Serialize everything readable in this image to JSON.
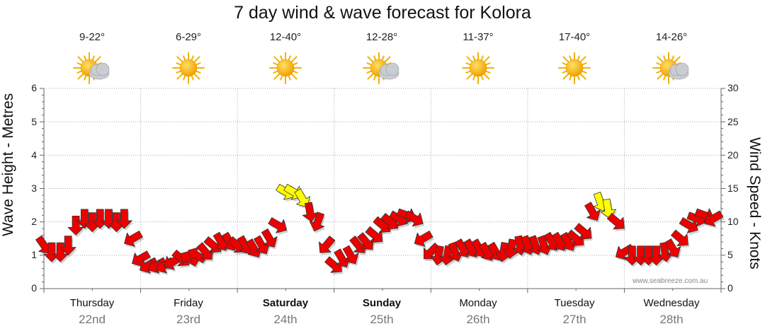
{
  "chart_data": {
    "type": "line",
    "title": "7 day wind & wave forecast for Kolora",
    "ylabel_left": "Wave Height - Metres",
    "ylabel_right": "Wind Speed - Knots",
    "ylim_left": [
      0,
      6
    ],
    "ylim_right": [
      0,
      30
    ],
    "yticks_left": [
      "0",
      "1",
      "2",
      "3",
      "4",
      "5",
      "6"
    ],
    "yticks_right": [
      "0",
      "5",
      "10",
      "15",
      "20",
      "25",
      "30"
    ],
    "days": [
      {
        "day": "Thursday",
        "date": "22nd",
        "temp": "9-22°",
        "icon": "partly-cloudy-icon",
        "bold": false
      },
      {
        "day": "Friday",
        "date": "23rd",
        "temp": "6-29°",
        "icon": "sunny-icon",
        "bold": false
      },
      {
        "day": "Saturday",
        "date": "24th",
        "temp": "12-40°",
        "icon": "sunny-icon",
        "bold": true
      },
      {
        "day": "Sunday",
        "date": "25th",
        "temp": "12-28°",
        "icon": "partly-cloudy-icon",
        "bold": true
      },
      {
        "day": "Monday",
        "date": "26th",
        "temp": "11-37°",
        "icon": "sunny-icon",
        "bold": false
      },
      {
        "day": "Tuesday",
        "date": "27th",
        "temp": "17-40°",
        "icon": "sunny-icon",
        "bold": false
      },
      {
        "day": "Wednesday",
        "date": "28th",
        "temp": "14-26°",
        "icon": "partly-cloudy-icon",
        "bold": false
      }
    ],
    "series": [
      {
        "name": "Wind Speed (knots) with direction arrows",
        "x_days": [
          0.0,
          0.08,
          0.17,
          0.25,
          0.33,
          0.42,
          0.5,
          0.58,
          0.67,
          0.75,
          0.83,
          0.92,
          1.0,
          1.08,
          1.17,
          1.25,
          1.33,
          1.42,
          1.5,
          1.58,
          1.67,
          1.75,
          1.83,
          1.92,
          2.0,
          2.08,
          2.17,
          2.25,
          2.33,
          2.42,
          2.5,
          2.58,
          2.67,
          2.75,
          2.83,
          2.92,
          3.0,
          3.08,
          3.17,
          3.25,
          3.33,
          3.42,
          3.5,
          3.58,
          3.67,
          3.75,
          3.83,
          3.92,
          4.0,
          4.08,
          4.17,
          4.25,
          4.33,
          4.42,
          4.5,
          4.58,
          4.67,
          4.75,
          4.83,
          4.92,
          5.0,
          5.08,
          5.17,
          5.25,
          5.33,
          5.42,
          5.5,
          5.58,
          5.67,
          5.75,
          5.83,
          5.92,
          6.0,
          6.08,
          6.17,
          6.25,
          6.33,
          6.42,
          6.5,
          6.58,
          6.67,
          6.75,
          6.83,
          6.92
        ],
        "values": [
          6.5,
          5.5,
          5.5,
          6.5,
          9.5,
          10.5,
          10,
          10.5,
          10.5,
          10,
          10.5,
          7.5,
          4.5,
          3.5,
          3.5,
          3.5,
          4,
          4.5,
          4.5,
          5,
          5.5,
          6.5,
          7,
          7,
          6.5,
          6.5,
          6,
          6.5,
          7.5,
          9.5,
          14.5,
          14.5,
          13.5,
          11.5,
          10,
          6.5,
          3.5,
          4.5,
          5,
          6.5,
          7,
          8,
          9.5,
          10,
          10.5,
          11,
          10.5,
          7.5,
          5.5,
          5,
          5,
          5.5,
          6,
          6,
          6,
          5.5,
          5.5,
          5.5,
          6,
          6.5,
          6.5,
          6.5,
          6.5,
          7,
          7,
          7,
          7.5,
          8.5,
          11.5,
          13,
          12,
          10,
          5.5,
          5,
          5,
          5,
          5,
          5.5,
          6,
          7.5,
          9.5,
          10.5,
          11,
          10.5
        ],
        "direction_deg": [
          55,
          90,
          90,
          90,
          90,
          90,
          90,
          90,
          90,
          90,
          90,
          150,
          150,
          150,
          150,
          150,
          150,
          40,
          210,
          210,
          50,
          40,
          60,
          60,
          40,
          60,
          60,
          60,
          60,
          30,
          30,
          30,
          60,
          80,
          110,
          130,
          40,
          60,
          60,
          50,
          50,
          40,
          40,
          40,
          30,
          20,
          30,
          150,
          135,
          100,
          100,
          70,
          60,
          60,
          60,
          60,
          60,
          100,
          100,
          80,
          70,
          70,
          70,
          60,
          60,
          60,
          40,
          40,
          60,
          70,
          80,
          40,
          150,
          90,
          90,
          90,
          90,
          80,
          60,
          40,
          30,
          20,
          20,
          150
        ],
        "color_default": "#ee0000",
        "color_high": "#ffff00"
      }
    ]
  },
  "watermark": "www.seabreeze.com.au"
}
